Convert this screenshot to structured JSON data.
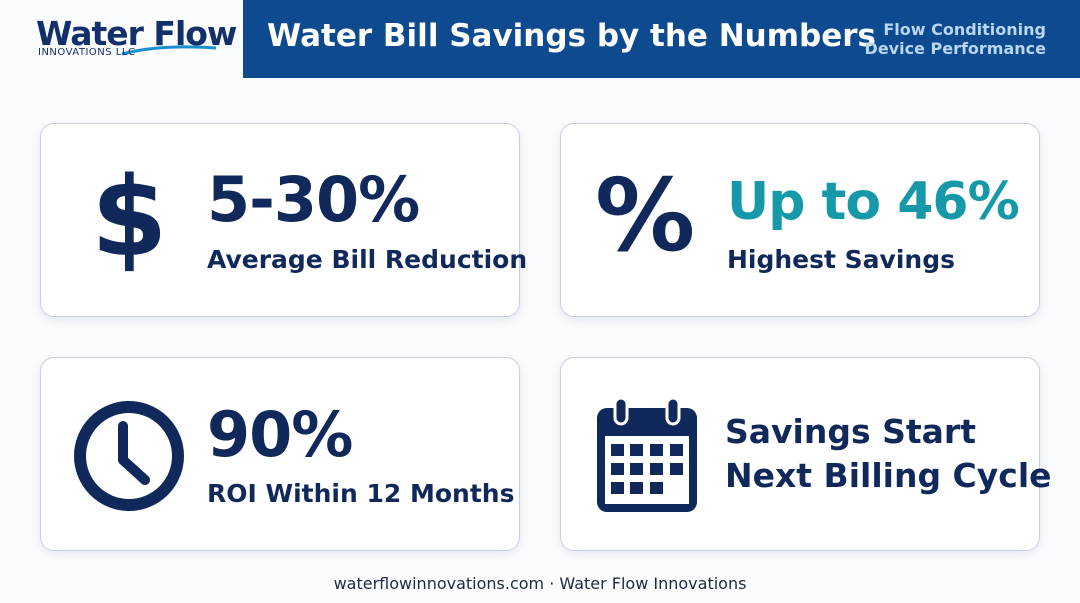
{
  "logo": {
    "name": "Water Flow",
    "tagline": "INNOVATIONS LLC"
  },
  "header": {
    "title": "Water Bill Savings by the Numbers",
    "subtitle_lines": [
      "Flow Conditioning",
      "Device Performance"
    ]
  },
  "cards": [
    {
      "icon": "$",
      "stat": "5-30%",
      "label": "Average Bill Reduction"
    },
    {
      "icon": "%",
      "stat": "Up to 46%",
      "label": "Highest Savings"
    },
    {
      "stat": "90%",
      "label": "ROI Within 12 Months"
    },
    {
      "lines": [
        "Savings Start",
        "Next Billing Cycle"
      ]
    }
  ],
  "footer": "waterflowinnovations.com · Water Flow Innovations"
}
